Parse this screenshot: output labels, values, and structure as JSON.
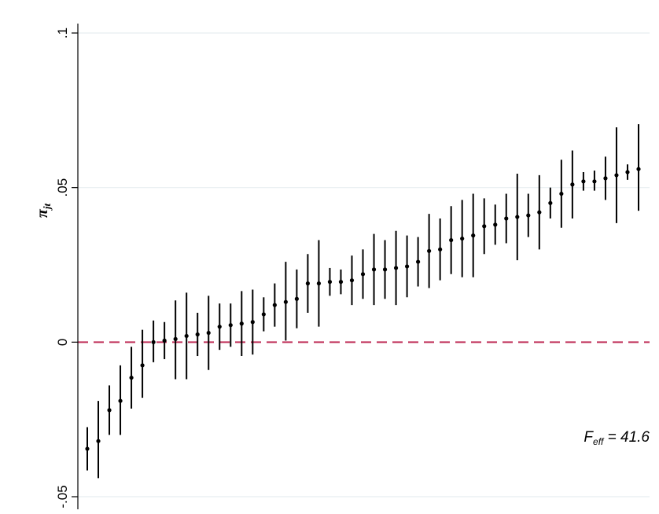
{
  "chart_data": {
    "type": "scatter",
    "ylabel": "π",
    "ylabel_subscript": "jt",
    "ylim": [
      -0.05,
      0.1
    ],
    "y_ticks": [
      {
        "value": -0.05,
        "label": "-.05"
      },
      {
        "value": 0,
        "label": "0"
      },
      {
        "value": 0.05,
        "label": ".05"
      },
      {
        "value": 0.1,
        "label": ".1"
      }
    ],
    "grid": true,
    "reference_line": {
      "y": 0,
      "style": "dashed",
      "color": "#c0305a"
    },
    "point_color": "#000000",
    "annotation": {
      "main": "F",
      "subscript": "eff",
      "text": " = 41.6",
      "placement": "bottom-right"
    },
    "series": [
      {
        "points": [
          {
            "x": 1,
            "y": -0.0345,
            "lo": -0.0415,
            "hi": -0.0275
          },
          {
            "x": 2,
            "y": -0.032,
            "lo": -0.044,
            "hi": -0.019
          },
          {
            "x": 3,
            "y": -0.022,
            "lo": -0.03,
            "hi": -0.014
          },
          {
            "x": 4,
            "y": -0.019,
            "lo": -0.03,
            "hi": -0.0075
          },
          {
            "x": 5,
            "y": -0.0115,
            "lo": -0.0215,
            "hi": -0.0015
          },
          {
            "x": 6,
            "y": -0.0075,
            "lo": -0.018,
            "hi": 0.004
          },
          {
            "x": 7,
            "y": 0.0,
            "lo": -0.0065,
            "hi": 0.007
          },
          {
            "x": 8,
            "y": 0.0005,
            "lo": -0.0055,
            "hi": 0.0065
          },
          {
            "x": 9,
            "y": 0.001,
            "lo": -0.012,
            "hi": 0.0135
          },
          {
            "x": 10,
            "y": 0.002,
            "lo": -0.012,
            "hi": 0.016
          },
          {
            "x": 11,
            "y": 0.0025,
            "lo": -0.0045,
            "hi": 0.0095
          },
          {
            "x": 12,
            "y": 0.003,
            "lo": -0.009,
            "hi": 0.015
          },
          {
            "x": 13,
            "y": 0.005,
            "lo": -0.0025,
            "hi": 0.0125
          },
          {
            "x": 14,
            "y": 0.0055,
            "lo": -0.0015,
            "hi": 0.0125
          },
          {
            "x": 15,
            "y": 0.006,
            "lo": -0.0045,
            "hi": 0.0165
          },
          {
            "x": 16,
            "y": 0.0065,
            "lo": -0.004,
            "hi": 0.017
          },
          {
            "x": 17,
            "y": 0.009,
            "lo": 0.0035,
            "hi": 0.0145
          },
          {
            "x": 18,
            "y": 0.012,
            "lo": 0.005,
            "hi": 0.019
          },
          {
            "x": 19,
            "y": 0.013,
            "lo": 0.0005,
            "hi": 0.026
          },
          {
            "x": 20,
            "y": 0.014,
            "lo": 0.0045,
            "hi": 0.0235
          },
          {
            "x": 21,
            "y": 0.019,
            "lo": 0.0095,
            "hi": 0.0285
          },
          {
            "x": 22,
            "y": 0.019,
            "lo": 0.005,
            "hi": 0.033
          },
          {
            "x": 23,
            "y": 0.0195,
            "lo": 0.015,
            "hi": 0.024
          },
          {
            "x": 24,
            "y": 0.0195,
            "lo": 0.0155,
            "hi": 0.0235
          },
          {
            "x": 25,
            "y": 0.02,
            "lo": 0.012,
            "hi": 0.028
          },
          {
            "x": 26,
            "y": 0.022,
            "lo": 0.014,
            "hi": 0.03
          },
          {
            "x": 27,
            "y": 0.0235,
            "lo": 0.012,
            "hi": 0.035
          },
          {
            "x": 28,
            "y": 0.0235,
            "lo": 0.014,
            "hi": 0.033
          },
          {
            "x": 29,
            "y": 0.024,
            "lo": 0.012,
            "hi": 0.036
          },
          {
            "x": 30,
            "y": 0.0245,
            "lo": 0.0145,
            "hi": 0.0345
          },
          {
            "x": 31,
            "y": 0.026,
            "lo": 0.018,
            "hi": 0.034
          },
          {
            "x": 32,
            "y": 0.0295,
            "lo": 0.0175,
            "hi": 0.0415
          },
          {
            "x": 33,
            "y": 0.03,
            "lo": 0.02,
            "hi": 0.04
          },
          {
            "x": 34,
            "y": 0.033,
            "lo": 0.022,
            "hi": 0.044
          },
          {
            "x": 35,
            "y": 0.0335,
            "lo": 0.021,
            "hi": 0.046
          },
          {
            "x": 36,
            "y": 0.0345,
            "lo": 0.021,
            "hi": 0.048
          },
          {
            "x": 37,
            "y": 0.0375,
            "lo": 0.0285,
            "hi": 0.0465
          },
          {
            "x": 38,
            "y": 0.038,
            "lo": 0.0315,
            "hi": 0.0445
          },
          {
            "x": 39,
            "y": 0.04,
            "lo": 0.032,
            "hi": 0.048
          },
          {
            "x": 40,
            "y": 0.0405,
            "lo": 0.0265,
            "hi": 0.0545
          },
          {
            "x": 41,
            "y": 0.041,
            "lo": 0.034,
            "hi": 0.048
          },
          {
            "x": 42,
            "y": 0.042,
            "lo": 0.03,
            "hi": 0.054
          },
          {
            "x": 43,
            "y": 0.045,
            "lo": 0.04,
            "hi": 0.05
          },
          {
            "x": 44,
            "y": 0.048,
            "lo": 0.037,
            "hi": 0.059
          },
          {
            "x": 45,
            "y": 0.051,
            "lo": 0.04,
            "hi": 0.062
          },
          {
            "x": 46,
            "y": 0.052,
            "lo": 0.049,
            "hi": 0.055
          },
          {
            "x": 47,
            "y": 0.052,
            "lo": 0.049,
            "hi": 0.0555
          },
          {
            "x": 48,
            "y": 0.053,
            "lo": 0.046,
            "hi": 0.06
          },
          {
            "x": 49,
            "y": 0.054,
            "lo": 0.0385,
            "hi": 0.0695
          },
          {
            "x": 50,
            "y": 0.055,
            "lo": 0.0525,
            "hi": 0.0575
          },
          {
            "x": 51,
            "y": 0.056,
            "lo": 0.0425,
            "hi": 0.0705
          }
        ]
      }
    ]
  }
}
